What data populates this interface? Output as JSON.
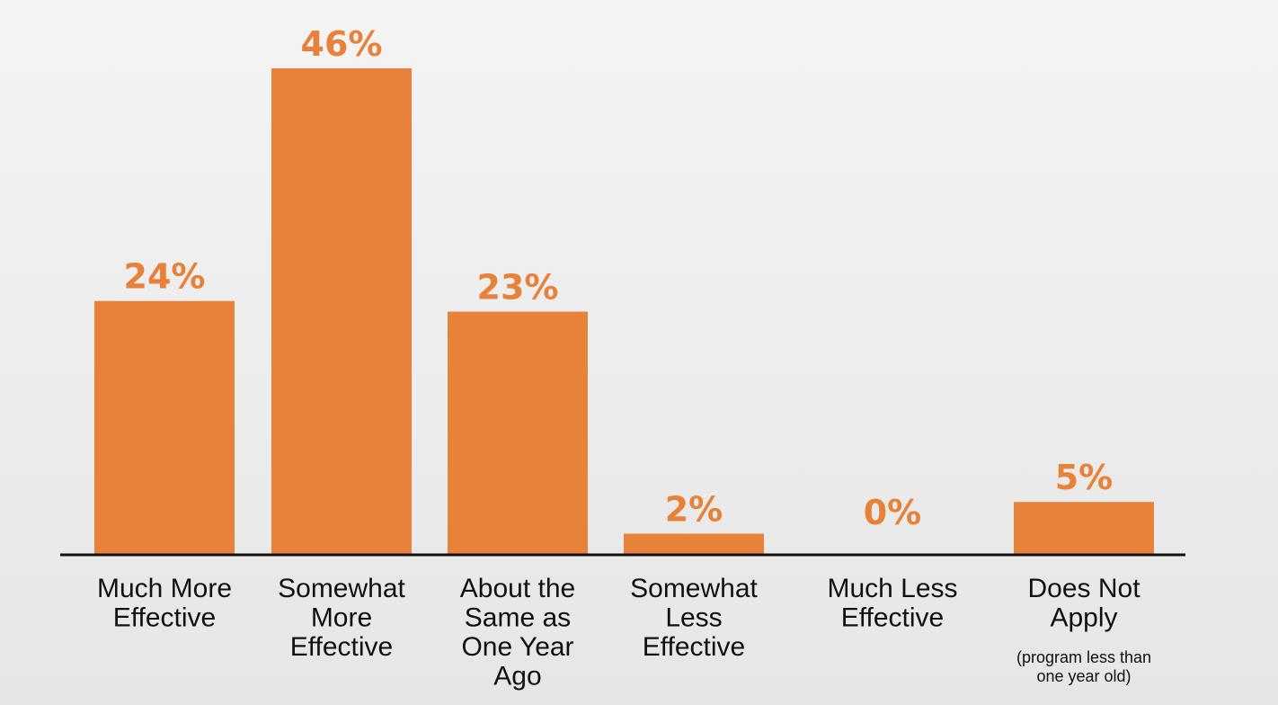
{
  "colors": {
    "bar": "#e8813a",
    "text": "#111111",
    "axis": "#111111"
  },
  "chart_data": {
    "type": "bar",
    "title": "",
    "xlabel": "",
    "ylabel": "",
    "ylim": [
      0,
      46
    ],
    "grid": false,
    "categories": [
      [
        "Much More",
        "Effective"
      ],
      [
        "Somewhat",
        "More",
        "Effective"
      ],
      [
        "About the",
        "Same as",
        "One Year",
        "Ago"
      ],
      [
        "Somewhat",
        "Less",
        "Effective"
      ],
      [
        "Much Less",
        "Effective"
      ],
      [
        "Does Not",
        "Apply"
      ]
    ],
    "category_notes": [
      "",
      "",
      "",
      "",
      "",
      "(program less than one year old)"
    ],
    "values": [
      24,
      46,
      23,
      2,
      0,
      5
    ],
    "value_labels": [
      "24%",
      "46%",
      "23%",
      "2%",
      "0%",
      "5%"
    ]
  }
}
